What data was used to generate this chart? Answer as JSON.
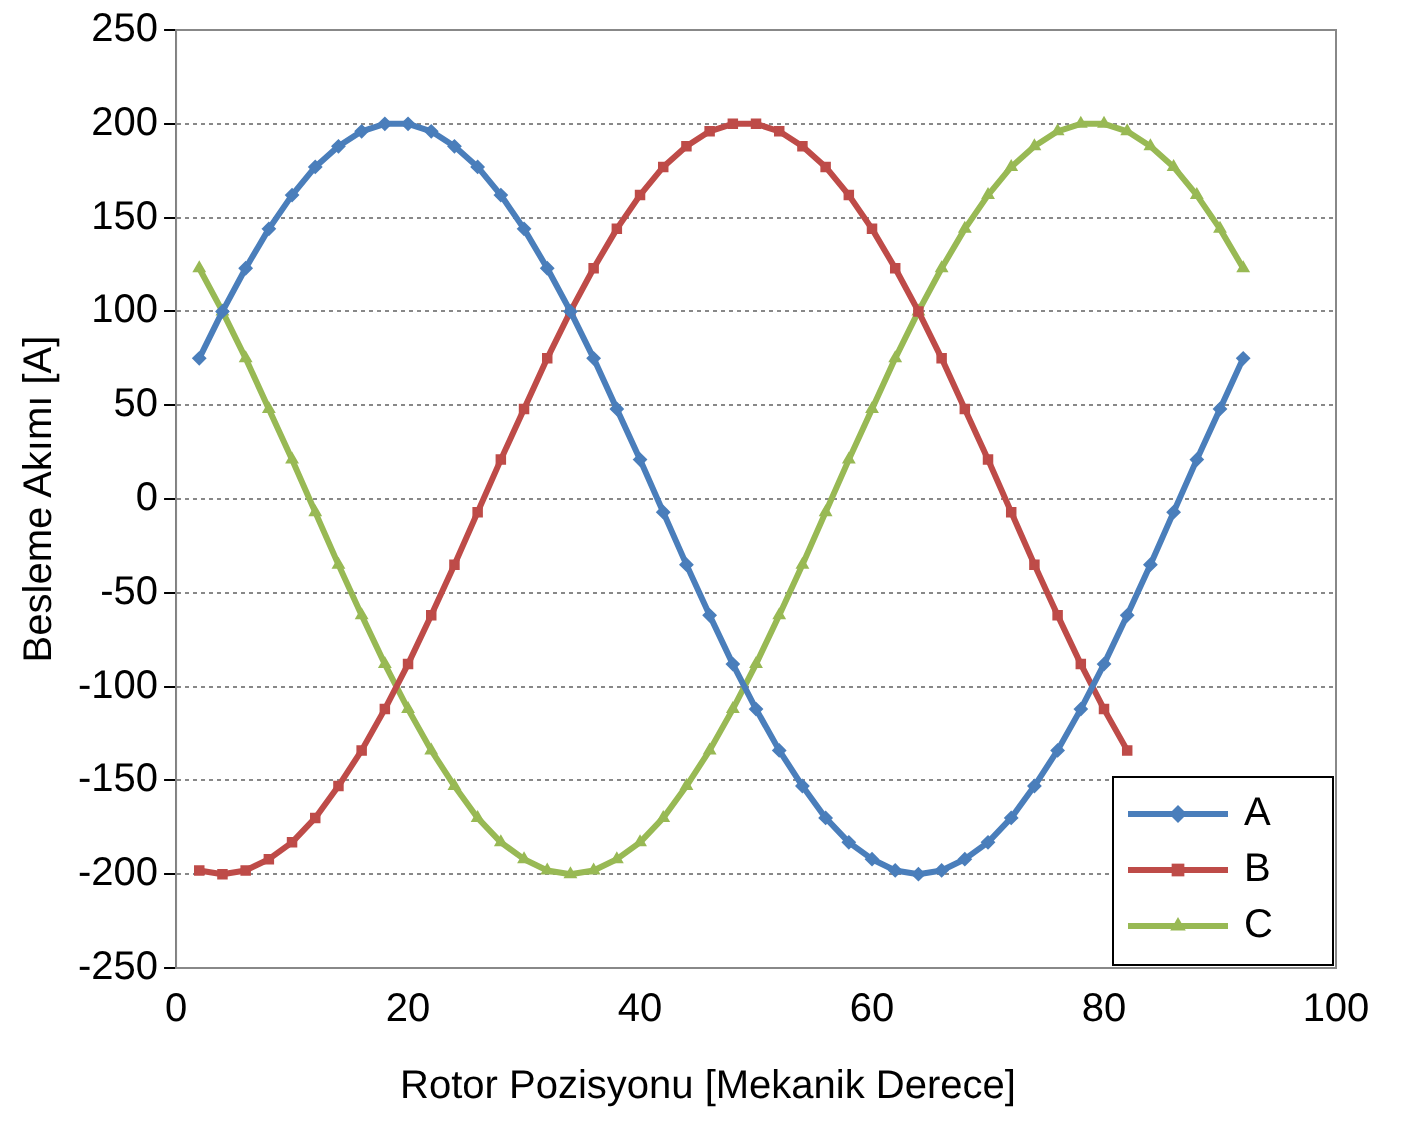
{
  "chart_data": {
    "type": "line",
    "xlabel": "Rotor Pozisyonu [Mekanik Derece]",
    "ylabel": "Besleme Akımı [A]",
    "x": [
      2,
      4,
      6,
      8,
      10,
      12,
      14,
      16,
      18,
      20,
      22,
      24,
      26,
      28,
      30,
      32,
      34,
      36,
      38,
      40,
      42,
      44,
      46,
      48,
      50,
      52,
      54,
      56,
      58,
      60,
      62,
      64,
      66,
      68,
      70,
      72,
      74,
      76,
      78,
      80,
      82,
      84,
      86,
      88,
      90,
      92
    ],
    "xlim": [
      0,
      100
    ],
    "xticks": [
      0,
      20,
      40,
      60,
      80,
      100
    ],
    "ylim": [
      -250,
      250
    ],
    "yticks": [
      -250,
      -200,
      -150,
      -100,
      -50,
      0,
      50,
      100,
      150,
      200,
      250
    ],
    "grid": "y",
    "legend": "bottom right",
    "series": [
      {
        "name": "A",
        "color": "#4a7ebb",
        "marker": "diamond",
        "values": [
          75,
          100,
          123,
          144,
          162,
          177,
          188,
          196,
          200,
          200,
          196,
          188,
          177,
          162,
          144,
          123,
          100,
          75,
          48,
          21,
          -7,
          -35,
          -62,
          -88,
          -112,
          -134,
          -153,
          -170,
          -183,
          -192,
          -198,
          -200,
          -198,
          -192,
          -183,
          -170,
          -153,
          -134,
          -112,
          -88,
          -62,
          -35,
          -7,
          21,
          48,
          75
        ]
      },
      {
        "name": "B",
        "color": "#be4b48",
        "marker": "square",
        "values": [
          -198,
          -200,
          -198,
          -192,
          -183,
          -170,
          -153,
          -134,
          -112,
          -88,
          -62,
          -35,
          -7,
          21,
          48,
          75,
          100,
          123,
          144,
          162,
          177,
          188,
          196,
          200,
          200,
          196,
          188,
          177,
          162,
          144,
          123,
          100,
          75,
          48,
          21,
          -7,
          -35,
          -62,
          -88,
          -112,
          -134,
          null,
          null,
          null,
          null,
          null
        ]
      },
      {
        "name": "C",
        "color": "#98b954",
        "marker": "triangle",
        "values": [
          123,
          100,
          75,
          48,
          21,
          -7,
          -35,
          -62,
          -88,
          -112,
          -134,
          -153,
          -170,
          -183,
          -192,
          -198,
          -200,
          -198,
          -192,
          -183,
          -170,
          -153,
          -134,
          -112,
          -88,
          -62,
          -35,
          -7,
          21,
          48,
          75,
          100,
          123,
          144,
          162,
          177,
          188,
          196,
          200,
          200,
          196,
          188,
          177,
          162,
          144,
          123
        ]
      }
    ]
  }
}
